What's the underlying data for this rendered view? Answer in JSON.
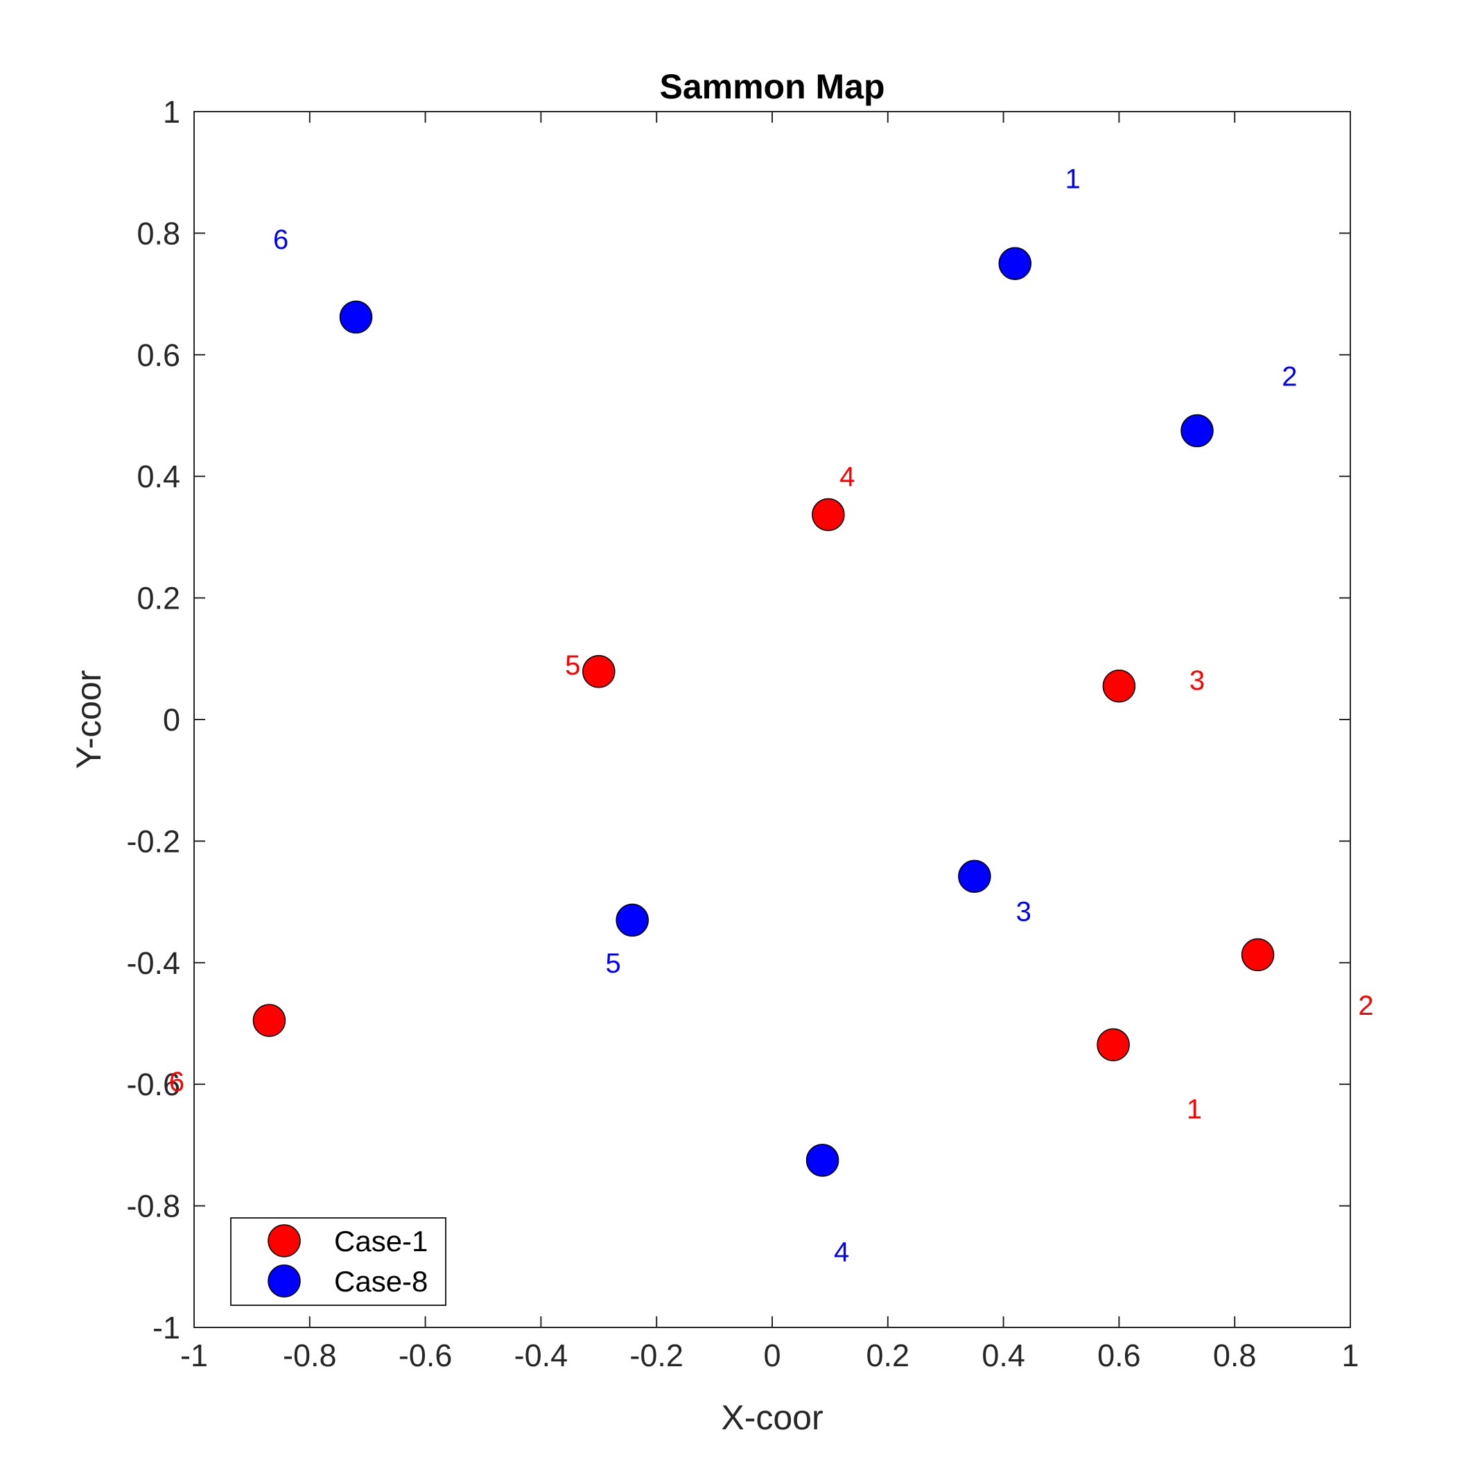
{
  "chart_data": {
    "type": "scatter",
    "title": "Sammon Map",
    "xlabel": "X-coor",
    "ylabel": "Y-coor",
    "xlim": [
      -1,
      1
    ],
    "ylim": [
      -1,
      1
    ],
    "xticks": [
      -1,
      -0.8,
      -0.6,
      -0.4,
      -0.2,
      0,
      0.2,
      0.4,
      0.6,
      0.8,
      1
    ],
    "yticks": [
      -1,
      -0.8,
      -0.6,
      -0.4,
      -0.2,
      0,
      0.2,
      0.4,
      0.6,
      0.8,
      1
    ],
    "xtick_labels": [
      "-1",
      "-0.8",
      "-0.6",
      "-0.4",
      "-0.2",
      "0",
      "0.2",
      "0.4",
      "0.6",
      "0.8",
      "1"
    ],
    "ytick_labels": [
      "-1",
      "-0.8",
      "-0.6",
      "-0.4",
      "-0.2",
      "0",
      "0.2",
      "0.4",
      "0.6",
      "0.8",
      "1"
    ],
    "grid": false,
    "legend_position": "bottom-left",
    "series": [
      {
        "name": "Case-1",
        "color": "#ff0000",
        "points": [
          {
            "label": "1",
            "x": 0.59,
            "y": -0.535,
            "label_x": 0.73,
            "label_y": -0.64
          },
          {
            "label": "2",
            "x": 0.84,
            "y": -0.387,
            "label_x": 1.027,
            "label_y": -0.47
          },
          {
            "label": "3",
            "x": 0.6,
            "y": 0.055,
            "label_x": 0.735,
            "label_y": 0.065
          },
          {
            "label": "4",
            "x": 0.097,
            "y": 0.337,
            "label_x": 0.13,
            "label_y": 0.4
          },
          {
            "label": "5",
            "x": -0.3,
            "y": 0.079,
            "label_x": -0.345,
            "label_y": 0.09
          },
          {
            "label": "6",
            "x": -0.87,
            "y": -0.495,
            "label_x": -1.03,
            "label_y": -0.595
          }
        ]
      },
      {
        "name": "Case-8",
        "color": "#0000ff",
        "points": [
          {
            "label": "1",
            "x": 0.42,
            "y": 0.75,
            "label_x": 0.52,
            "label_y": 0.89
          },
          {
            "label": "2",
            "x": 0.735,
            "y": 0.475,
            "label_x": 0.895,
            "label_y": 0.565
          },
          {
            "label": "3",
            "x": 0.35,
            "y": -0.258,
            "label_x": 0.435,
            "label_y": -0.315
          },
          {
            "label": "4",
            "x": 0.087,
            "y": -0.725,
            "label_x": 0.12,
            "label_y": -0.875
          },
          {
            "label": "5",
            "x": -0.242,
            "y": -0.33,
            "label_x": -0.275,
            "label_y": -0.4
          },
          {
            "label": "6",
            "x": -0.72,
            "y": 0.662,
            "label_x": -0.85,
            "label_y": 0.79
          }
        ]
      }
    ]
  }
}
